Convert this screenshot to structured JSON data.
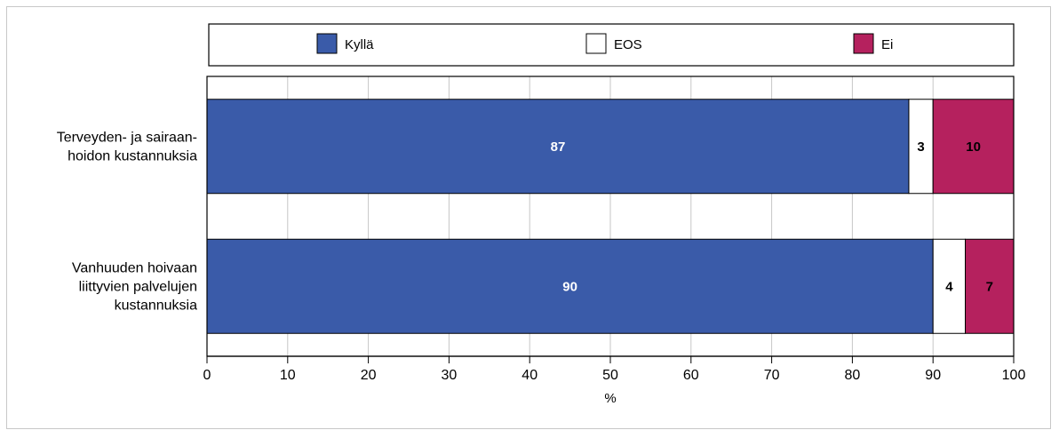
{
  "chart_data": {
    "type": "bar",
    "orientation": "horizontal",
    "stacked": true,
    "categories": [
      [
        "Terveyden- ja sairaan-",
        "hoidon kustannuksia"
      ],
      [
        "Vanhuuden hoivaan",
        "liittyvien palvelujen",
        "kustannuksia"
      ]
    ],
    "series": [
      {
        "name": "Kyllä",
        "color": "#3a5ba9",
        "labelColor": "#ffffff",
        "values": [
          87,
          90
        ]
      },
      {
        "name": "EOS",
        "color": "#ffffff",
        "labelColor": "#000000",
        "values": [
          3,
          4
        ]
      },
      {
        "name": "Ei",
        "color": "#b5215e",
        "labelColor": "#000000",
        "values": [
          10,
          7
        ]
      }
    ],
    "xlabel": "%",
    "xlim": [
      0,
      100
    ],
    "xticks": [
      0,
      10,
      20,
      30,
      40,
      50,
      60,
      70,
      80,
      90,
      100
    ],
    "grid": true,
    "legend_position": "top"
  }
}
